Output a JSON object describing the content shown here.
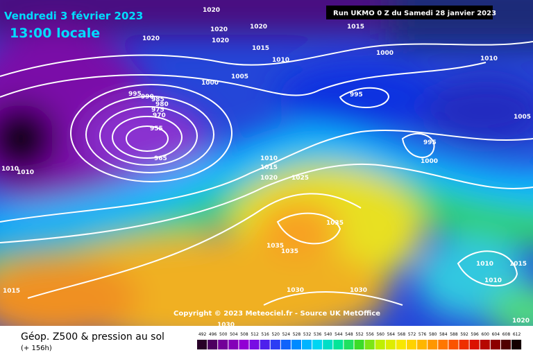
{
  "header": {
    "date": "Vendredi 3 février 2023",
    "time": "13:00 locale",
    "run": "Run UKMO 0 Z du Samedi 28 janvier 2023"
  },
  "copyright": "Copyright © 2023 Meteociel.fr - Source UK MetOffice",
  "footer": {
    "title": "Géop. Z500 & pression au sol",
    "lead": "(+ 156h)"
  },
  "isobar_labels": [
    1020,
    1020,
    1020,
    1020,
    1020,
    1015,
    1015,
    1010,
    1005,
    1000,
    1000,
    995,
    995,
    990,
    985,
    980,
    975,
    970,
    955,
    965,
    995,
    1000,
    1010,
    1005,
    1010,
    1010,
    1010,
    1015,
    1020,
    1025,
    1035,
    1035,
    1035,
    1030,
    1030,
    1030,
    1015,
    1010,
    1015,
    1010,
    1020
  ],
  "colorbar": [
    492,
    496,
    500,
    504,
    508,
    512,
    516,
    520,
    524,
    528,
    532,
    536,
    540,
    544,
    548,
    552,
    556,
    560,
    564,
    568,
    572,
    576,
    580,
    584,
    588,
    592,
    596,
    600,
    604,
    608,
    612
  ]
}
